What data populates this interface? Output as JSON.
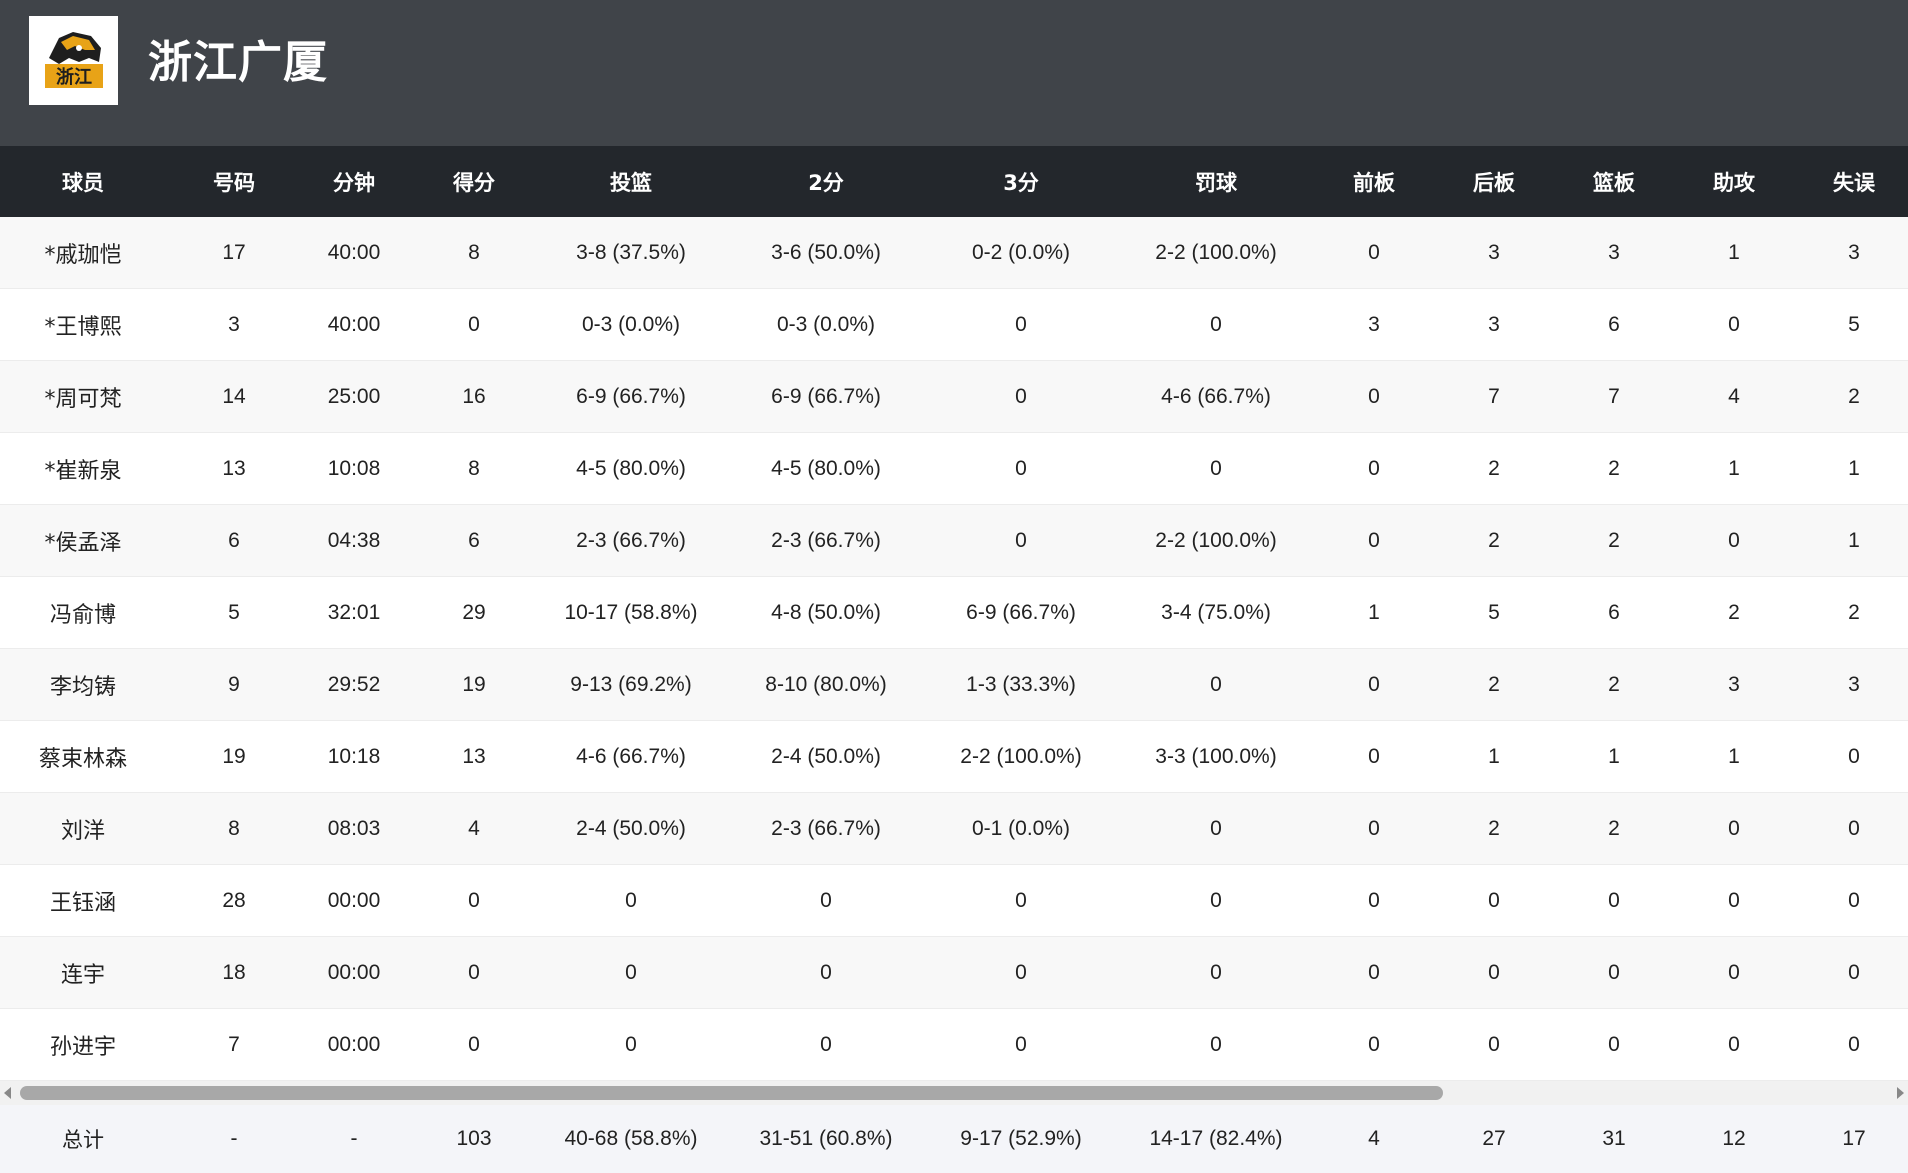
{
  "header": {
    "team_name": "浙江广厦",
    "logo_text": "浙江",
    "background_color": "#404449"
  },
  "table": {
    "columns": [
      "球员",
      "号码",
      "分钟",
      "得分",
      "投篮",
      "2分",
      "3分",
      "罚球",
      "前板",
      "后板",
      "篮板",
      "助攻",
      "失误"
    ],
    "rows": [
      [
        "*戚珈恺",
        "17",
        "40:00",
        "8",
        "3-8 (37.5%)",
        "3-6 (50.0%)",
        "0-2 (0.0%)",
        "2-2 (100.0%)",
        "0",
        "3",
        "3",
        "1",
        "3"
      ],
      [
        "*王博熙",
        "3",
        "40:00",
        "0",
        "0-3 (0.0%)",
        "0-3 (0.0%)",
        "0",
        "0",
        "3",
        "3",
        "6",
        "0",
        "5"
      ],
      [
        "*周可梵",
        "14",
        "25:00",
        "16",
        "6-9 (66.7%)",
        "6-9 (66.7%)",
        "0",
        "4-6 (66.7%)",
        "0",
        "7",
        "7",
        "4",
        "2"
      ],
      [
        "*崔新泉",
        "13",
        "10:08",
        "8",
        "4-5 (80.0%)",
        "4-5 (80.0%)",
        "0",
        "0",
        "0",
        "2",
        "2",
        "1",
        "1"
      ],
      [
        "*侯孟泽",
        "6",
        "04:38",
        "6",
        "2-3 (66.7%)",
        "2-3 (66.7%)",
        "0",
        "2-2 (100.0%)",
        "0",
        "2",
        "2",
        "0",
        "1"
      ],
      [
        "冯俞博",
        "5",
        "32:01",
        "29",
        "10-17 (58.8%)",
        "4-8 (50.0%)",
        "6-9 (66.7%)",
        "3-4 (75.0%)",
        "1",
        "5",
        "6",
        "2",
        "2"
      ],
      [
        "李均铸",
        "9",
        "29:52",
        "19",
        "9-13 (69.2%)",
        "8-10 (80.0%)",
        "1-3 (33.3%)",
        "0",
        "0",
        "2",
        "2",
        "3",
        "3"
      ],
      [
        "蔡束林森",
        "19",
        "10:18",
        "13",
        "4-6 (66.7%)",
        "2-4 (50.0%)",
        "2-2 (100.0%)",
        "3-3 (100.0%)",
        "0",
        "1",
        "1",
        "1",
        "0"
      ],
      [
        "刘洋",
        "8",
        "08:03",
        "4",
        "2-4 (50.0%)",
        "2-3 (66.7%)",
        "0-1 (0.0%)",
        "0",
        "0",
        "2",
        "2",
        "0",
        "0"
      ],
      [
        "王钰涵",
        "28",
        "00:00",
        "0",
        "0",
        "0",
        "0",
        "0",
        "0",
        "0",
        "0",
        "0",
        "0"
      ],
      [
        "连宇",
        "18",
        "00:00",
        "0",
        "0",
        "0",
        "0",
        "0",
        "0",
        "0",
        "0",
        "0",
        "0"
      ],
      [
        "孙进宇",
        "7",
        "00:00",
        "0",
        "0",
        "0",
        "0",
        "0",
        "0",
        "0",
        "0",
        "0",
        "0"
      ]
    ],
    "totals": [
      "总计",
      "-",
      "-",
      "103",
      "40-68 (58.8%)",
      "31-51 (60.8%)",
      "9-17 (52.9%)",
      "14-17 (82.4%)",
      "4",
      "27",
      "31",
      "12",
      "17"
    ]
  },
  "colors": {
    "header_bg": "#404449",
    "table_header_bg": "#23272c",
    "row_alt_bg": "#f8f8f8",
    "totals_bg": "#f4f5f9",
    "logo_accent": "#e8a317"
  },
  "icons": {
    "logo": "tiger-logo-icon",
    "scroll_left": "scroll-left-arrow-icon",
    "scroll_right": "scroll-right-arrow-icon"
  }
}
